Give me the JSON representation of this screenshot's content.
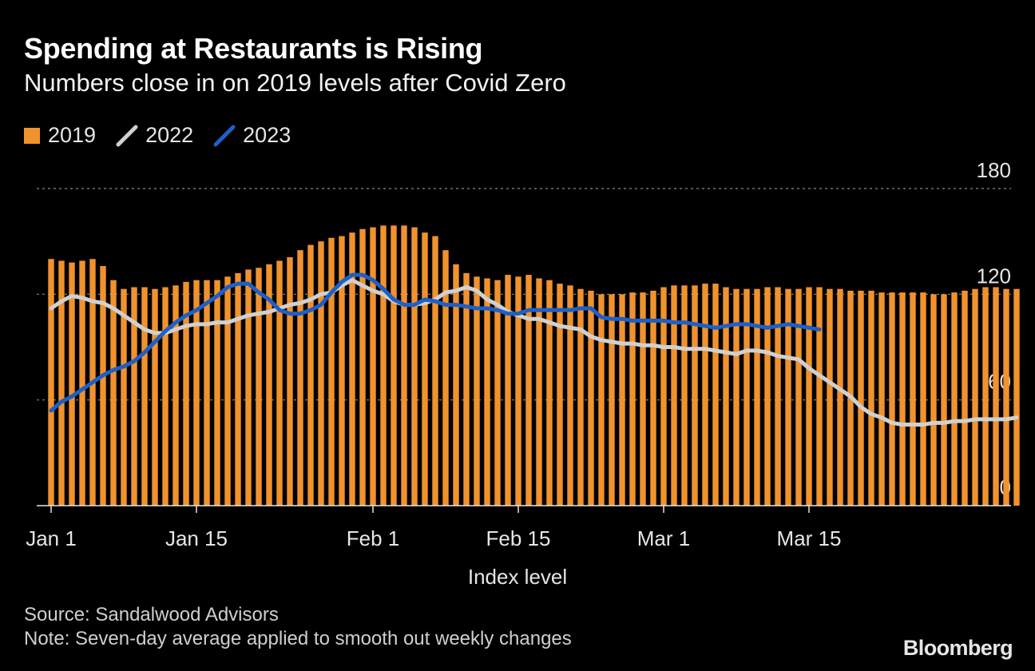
{
  "title": "Spending at Restaurants is Rising",
  "subtitle": "Numbers close in on 2019 levels after Covid Zero",
  "source": "Source: Sandalwood Advisors",
  "note": "Note: Seven-day average applied to smooth out weekly changes",
  "brand": "Bloomberg",
  "colors": {
    "bar_2019": "#f0922d",
    "line_2022": "#d0d0d0",
    "line_2023": "#1e5fc8",
    "grid": "#8a8a8a",
    "axis": "#e6e6e6"
  },
  "chart_data": {
    "type": "bar",
    "xlabel": "Index level",
    "ylabel": "",
    "ylim": [
      0,
      180
    ],
    "yticks": [
      0,
      60,
      120,
      180
    ],
    "grid": true,
    "legend_position": "top-left",
    "xtick_labels": [
      {
        "day": 1,
        "label": "Jan 1"
      },
      {
        "day": 15,
        "label": "Jan 15"
      },
      {
        "day": 32,
        "label": "Feb 1"
      },
      {
        "day": 46,
        "label": "Feb 15"
      },
      {
        "day": 60,
        "label": "Mar 1"
      },
      {
        "day": 74,
        "label": "Mar 15"
      }
    ],
    "x_note": "day of year, 1 = Jan 1",
    "series": [
      {
        "name": "2019",
        "type": "bar",
        "x_start": 1,
        "values": [
          140,
          139,
          138,
          139,
          140,
          136,
          128,
          123,
          124,
          124,
          123,
          124,
          125,
          127,
          128,
          128,
          128,
          130,
          132,
          134,
          135,
          137,
          139,
          141,
          145,
          148,
          150,
          152,
          153,
          155,
          157,
          158,
          159,
          159,
          159,
          158,
          155,
          153,
          145,
          137,
          132,
          130,
          129,
          128,
          131,
          130,
          131,
          129,
          128,
          126,
          125,
          123,
          122,
          120,
          120,
          120,
          121,
          121,
          122,
          124,
          125,
          125,
          125,
          126,
          126,
          124,
          123,
          123,
          123,
          124,
          124,
          123,
          123,
          124,
          124,
          123,
          123,
          122,
          122,
          122,
          121,
          121,
          121,
          121,
          121,
          120,
          120,
          121,
          122,
          123,
          124,
          124,
          123,
          123
        ]
      },
      {
        "name": "2022",
        "type": "line",
        "x_start": 1,
        "values": [
          112,
          116,
          119,
          118,
          116,
          115,
          112,
          108,
          104,
          100,
          98,
          98,
          100,
          102,
          103,
          103,
          104,
          104,
          106,
          108,
          109,
          110,
          112,
          114,
          115,
          117,
          120,
          121,
          125,
          128,
          125,
          122,
          120,
          116,
          114,
          114,
          115,
          117,
          121,
          122,
          124,
          122,
          117,
          114,
          110,
          108,
          106,
          106,
          104,
          102,
          101,
          100,
          96,
          94,
          93,
          92,
          92,
          91,
          91,
          90,
          90,
          89,
          89,
          89,
          88,
          87,
          86,
          88,
          88,
          87,
          85,
          84,
          83,
          78,
          74,
          70,
          66,
          62,
          56,
          52,
          50,
          47,
          46,
          46,
          46,
          47,
          47,
          48,
          48,
          49,
          49,
          49,
          49,
          50
        ]
      },
      {
        "name": "2023",
        "type": "line",
        "x_start": 1,
        "values": [
          54,
          59,
          62,
          66,
          70,
          74,
          77,
          79,
          82,
          87,
          93,
          99,
          104,
          108,
          111,
          115,
          119,
          124,
          126,
          126,
          121,
          117,
          111,
          109,
          109,
          111,
          114,
          121,
          127,
          131,
          131,
          128,
          123,
          117,
          114,
          114,
          117,
          116,
          114,
          114,
          113,
          112,
          112,
          111,
          109,
          109,
          111,
          111,
          111,
          111,
          111,
          112,
          112,
          107,
          106,
          106,
          105,
          105,
          105,
          105,
          104,
          104,
          103,
          102,
          101,
          102,
          103,
          103,
          102,
          101,
          102,
          103,
          102,
          101,
          100
        ]
      }
    ]
  }
}
